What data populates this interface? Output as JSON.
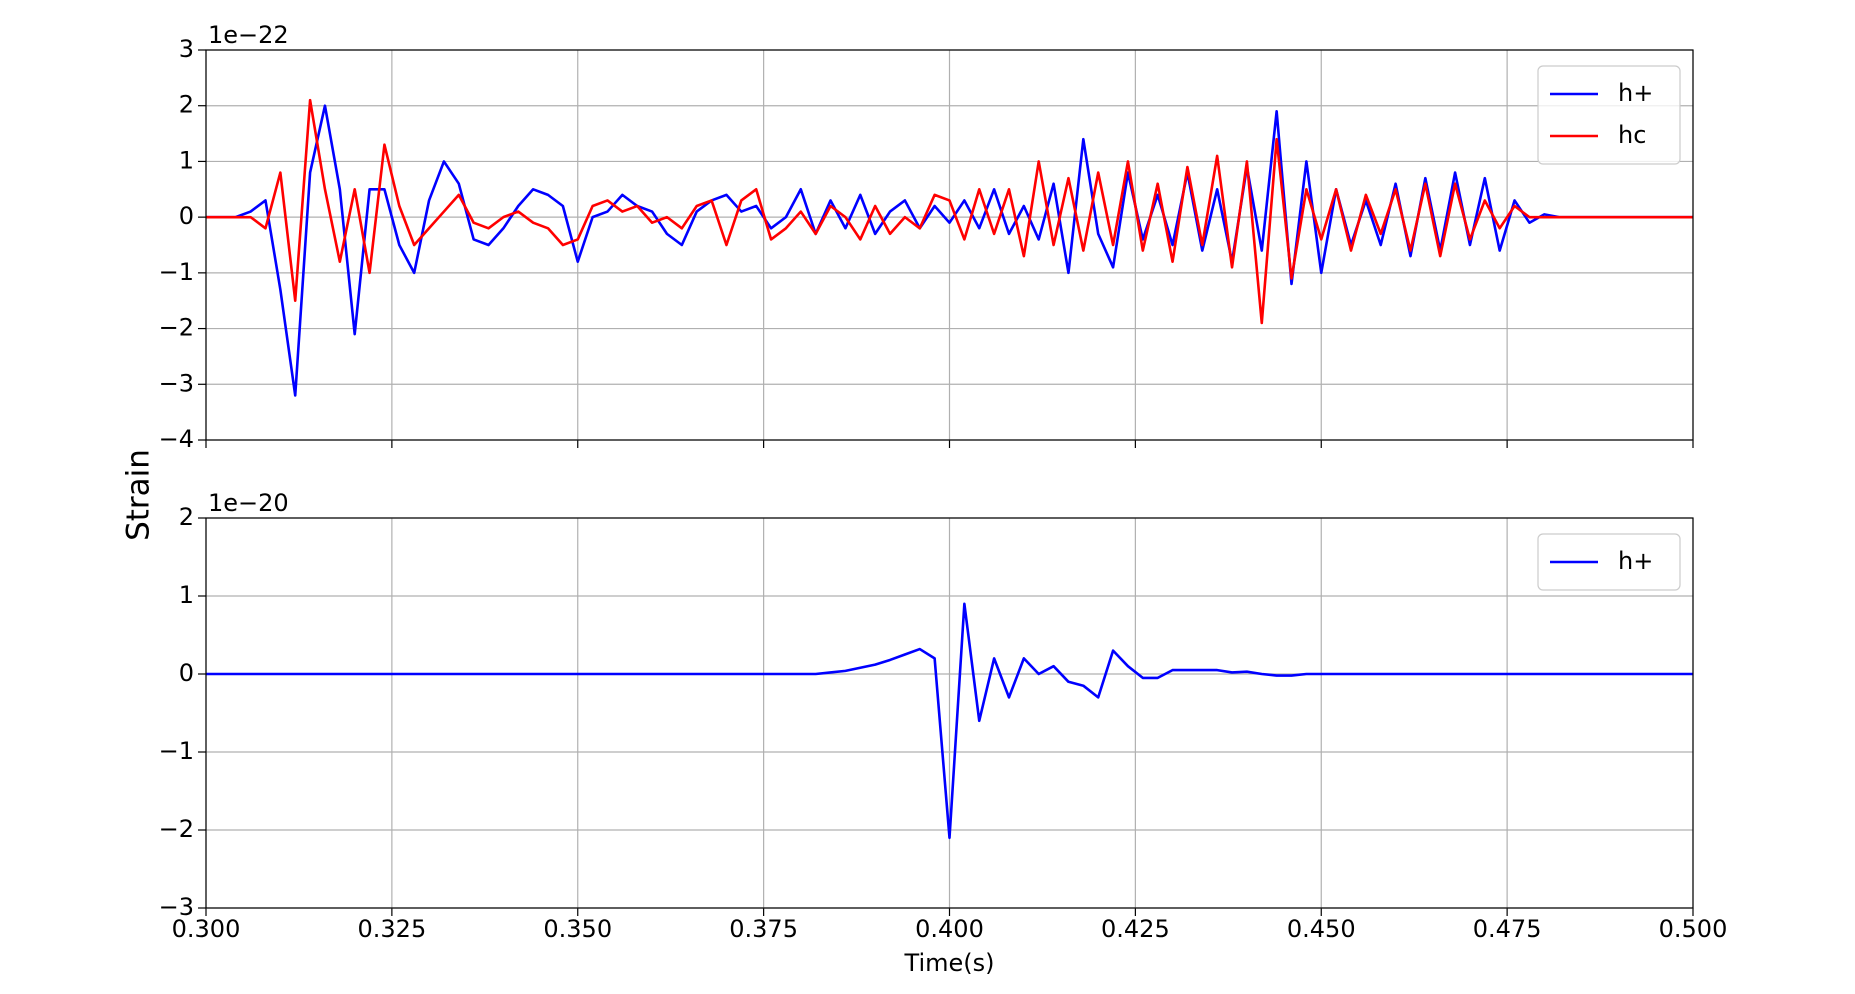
{
  "chart_data": [
    {
      "type": "line",
      "ylabel": "Strain",
      "offset_label": "1e−22",
      "legend": "upper right",
      "grid": true,
      "xlim": [
        0.3,
        0.5
      ],
      "xticks": [
        0.3,
        0.325,
        0.35,
        0.375,
        0.4,
        0.425,
        0.45,
        0.475,
        0.5
      ],
      "ylim": [
        -4,
        3
      ],
      "yticks": [
        {
          "value": -4,
          "label": "−4"
        },
        {
          "value": -3,
          "label": "−3"
        },
        {
          "value": -2,
          "label": "−2"
        },
        {
          "value": -1,
          "label": "−1"
        },
        0,
        1,
        2,
        3
      ],
      "x": [
        0.3,
        0.302,
        0.304,
        0.306,
        0.308,
        0.31,
        0.312,
        0.314,
        0.316,
        0.318,
        0.32,
        0.322,
        0.324,
        0.326,
        0.328,
        0.33,
        0.332,
        0.334,
        0.336,
        0.338,
        0.34,
        0.342,
        0.344,
        0.346,
        0.348,
        0.35,
        0.352,
        0.354,
        0.356,
        0.358,
        0.36,
        0.362,
        0.364,
        0.366,
        0.368,
        0.37,
        0.372,
        0.374,
        0.376,
        0.378,
        0.38,
        0.382,
        0.384,
        0.386,
        0.388,
        0.39,
        0.392,
        0.394,
        0.396,
        0.398,
        0.4,
        0.402,
        0.404,
        0.406,
        0.408,
        0.41,
        0.412,
        0.414,
        0.416,
        0.418,
        0.42,
        0.422,
        0.424,
        0.426,
        0.428,
        0.43,
        0.432,
        0.434,
        0.436,
        0.438,
        0.44,
        0.442,
        0.444,
        0.446,
        0.448,
        0.45,
        0.452,
        0.454,
        0.456,
        0.458,
        0.46,
        0.462,
        0.464,
        0.466,
        0.468,
        0.47,
        0.472,
        0.474,
        0.476,
        0.478,
        0.48,
        0.482,
        0.484,
        0.486,
        0.488,
        0.49,
        0.492,
        0.494,
        0.496,
        0.498,
        0.5
      ],
      "series": [
        {
          "name": "h+",
          "color": "#0000ff",
          "values": [
            0,
            0,
            0,
            0.1,
            0.3,
            -1.3,
            -3.2,
            0.8,
            2.0,
            0.5,
            -2.1,
            0.5,
            0.5,
            -0.5,
            -1.0,
            0.3,
            1.0,
            0.6,
            -0.4,
            -0.5,
            -0.2,
            0.2,
            0.5,
            0.4,
            0.2,
            -0.8,
            0,
            0.1,
            0.4,
            0.2,
            0.1,
            -0.3,
            -0.5,
            0.1,
            0.3,
            0.4,
            0.1,
            0.2,
            -0.2,
            0,
            0.5,
            -0.3,
            0.3,
            -0.2,
            0.4,
            -0.3,
            0.1,
            0.3,
            -0.2,
            0.2,
            -0.1,
            0.3,
            -0.2,
            0.5,
            -0.3,
            0.2,
            -0.4,
            0.6,
            -1.0,
            1.4,
            -0.3,
            -0.9,
            0.8,
            -0.4,
            0.4,
            -0.5,
            0.8,
            -0.6,
            0.5,
            -0.8,
            0.9,
            -0.6,
            1.9,
            -1.2,
            1.0,
            -1.0,
            0.5,
            -0.5,
            0.3,
            -0.5,
            0.6,
            -0.7,
            0.7,
            -0.6,
            0.8,
            -0.5,
            0.7,
            -0.6,
            0.3,
            -0.1,
            0.05,
            0,
            0,
            0,
            0,
            0,
            0,
            0,
            0,
            0,
            0
          ]
        },
        {
          "name": "hc",
          "color": "#ff0000",
          "values": [
            0,
            0,
            0,
            0,
            -0.2,
            0.8,
            -1.5,
            2.1,
            0.5,
            -0.8,
            0.5,
            -1.0,
            1.3,
            0.2,
            -0.5,
            -0.2,
            0.1,
            0.4,
            -0.1,
            -0.2,
            0,
            0.1,
            -0.1,
            -0.2,
            -0.5,
            -0.4,
            0.2,
            0.3,
            0.1,
            0.2,
            -0.1,
            0,
            -0.2,
            0.2,
            0.3,
            -0.5,
            0.3,
            0.5,
            -0.4,
            -0.2,
            0.1,
            -0.3,
            0.2,
            0,
            -0.4,
            0.2,
            -0.3,
            0,
            -0.2,
            0.4,
            0.3,
            -0.4,
            0.5,
            -0.3,
            0.5,
            -0.7,
            1.0,
            -0.5,
            0.7,
            -0.6,
            0.8,
            -0.5,
            1.0,
            -0.6,
            0.6,
            -0.8,
            0.9,
            -0.5,
            1.1,
            -0.9,
            1.0,
            -1.9,
            1.4,
            -1.1,
            0.5,
            -0.4,
            0.5,
            -0.6,
            0.4,
            -0.3,
            0.5,
            -0.6,
            0.6,
            -0.7,
            0.6,
            -0.4,
            0.3,
            -0.2,
            0.2,
            0,
            0,
            0,
            0,
            0,
            0,
            0,
            0,
            0,
            0,
            0,
            0
          ]
        }
      ]
    },
    {
      "type": "line",
      "xlabel": "Time(s)",
      "offset_label": "1e−20",
      "legend": "upper right",
      "grid": true,
      "xlim": [
        0.3,
        0.5
      ],
      "xticks": [
        {
          "value": 0.3,
          "label": "0.300"
        },
        {
          "value": 0.325,
          "label": "0.325"
        },
        {
          "value": 0.35,
          "label": "0.350"
        },
        {
          "value": 0.375,
          "label": "0.375"
        },
        {
          "value": 0.4,
          "label": "0.400"
        },
        {
          "value": 0.425,
          "label": "0.425"
        },
        {
          "value": 0.45,
          "label": "0.450"
        },
        {
          "value": 0.475,
          "label": "0.475"
        },
        {
          "value": 0.5,
          "label": "0.500"
        }
      ],
      "ylim": [
        -3,
        2
      ],
      "yticks": [
        {
          "value": -3,
          "label": "−3"
        },
        {
          "value": -2,
          "label": "−2"
        },
        {
          "value": -1,
          "label": "−1"
        },
        0,
        1,
        2
      ],
      "x": [
        0.3,
        0.302,
        0.304,
        0.306,
        0.308,
        0.31,
        0.312,
        0.314,
        0.316,
        0.318,
        0.32,
        0.322,
        0.324,
        0.326,
        0.328,
        0.33,
        0.332,
        0.334,
        0.336,
        0.338,
        0.34,
        0.342,
        0.344,
        0.346,
        0.348,
        0.35,
        0.352,
        0.354,
        0.356,
        0.358,
        0.36,
        0.362,
        0.364,
        0.366,
        0.368,
        0.37,
        0.372,
        0.374,
        0.376,
        0.378,
        0.38,
        0.382,
        0.384,
        0.386,
        0.388,
        0.39,
        0.392,
        0.394,
        0.396,
        0.398,
        0.4,
        0.402,
        0.404,
        0.406,
        0.408,
        0.41,
        0.412,
        0.414,
        0.416,
        0.418,
        0.42,
        0.422,
        0.424,
        0.426,
        0.428,
        0.43,
        0.432,
        0.434,
        0.436,
        0.438,
        0.44,
        0.442,
        0.444,
        0.446,
        0.448,
        0.45,
        0.452,
        0.454,
        0.456,
        0.458,
        0.46,
        0.462,
        0.464,
        0.466,
        0.468,
        0.47,
        0.472,
        0.474,
        0.476,
        0.478,
        0.48,
        0.482,
        0.484,
        0.486,
        0.488,
        0.49,
        0.492,
        0.494,
        0.496,
        0.498,
        0.5
      ],
      "series": [
        {
          "name": "h+",
          "color": "#0000ff",
          "values": [
            0,
            0,
            0,
            0,
            0,
            0,
            0,
            0,
            0,
            0,
            0,
            0,
            0,
            0,
            0,
            0,
            0,
            0,
            0,
            0,
            0,
            0,
            0,
            0,
            0,
            0,
            0,
            0,
            0,
            0,
            0,
            0,
            0,
            0,
            0,
            0,
            0,
            0,
            0,
            0,
            0,
            0,
            0.02,
            0.04,
            0.08,
            0.12,
            0.18,
            0.25,
            0.32,
            0.2,
            -2.1,
            0.9,
            -0.6,
            0.2,
            -0.3,
            0.2,
            0,
            0.1,
            -0.1,
            -0.15,
            -0.3,
            0.3,
            0.1,
            -0.05,
            -0.05,
            0.05,
            0.05,
            0.05,
            0.05,
            0.02,
            0.03,
            0,
            -0.02,
            -0.02,
            0,
            0,
            0,
            0,
            0,
            0,
            0,
            0,
            0,
            0,
            0,
            0,
            0,
            0,
            0,
            0,
            0,
            0,
            0,
            0,
            0,
            0,
            0,
            0,
            0,
            0,
            0
          ]
        }
      ]
    }
  ]
}
